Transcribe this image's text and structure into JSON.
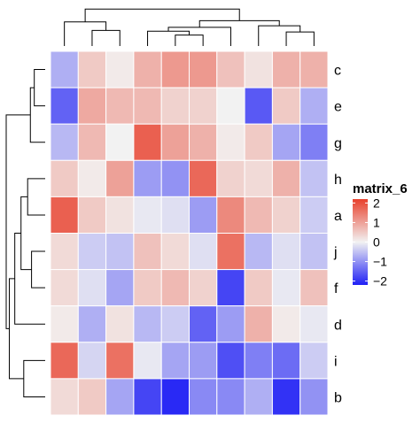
{
  "chart_data": {
    "type": "heatmap",
    "title": "",
    "legend": {
      "title": "matrix_6",
      "ticks": [
        2,
        1,
        0,
        -1,
        -2
      ],
      "tick_labels": [
        "2",
        "1",
        "0",
        "−1",
        "−2"
      ],
      "range": [
        -2.2,
        2.2
      ],
      "colors": {
        "low": "#1f1ff5",
        "mid": "#f2f2f2",
        "high": "#e8402c"
      },
      "position": "right"
    },
    "row_labels": [
      "c",
      "e",
      "g",
      "h",
      "a",
      "j",
      "f",
      "d",
      "i",
      "b"
    ],
    "n_cols": 10,
    "values": [
      [
        -0.7,
        0.5,
        0.1,
        0.8,
        1.1,
        1.1,
        0.6,
        0.2,
        0.8,
        0.8
      ],
      [
        -1.5,
        0.9,
        0.7,
        0.7,
        0.4,
        0.4,
        0.0,
        -1.6,
        0.5,
        -0.7
      ],
      [
        -0.6,
        0.7,
        0.0,
        1.8,
        1.0,
        0.8,
        0.1,
        0.5,
        -0.8,
        -1.2
      ],
      [
        0.5,
        0.1,
        1.0,
        -0.9,
        -1.0,
        1.7,
        0.4,
        0.3,
        0.8,
        -0.5
      ],
      [
        1.8,
        0.5,
        0.2,
        -0.1,
        -0.2,
        -0.9,
        1.3,
        0.7,
        0.4,
        -0.4
      ],
      [
        0.3,
        -0.4,
        -0.5,
        0.6,
        0.3,
        -0.2,
        1.6,
        -0.6,
        -0.2,
        -0.5
      ],
      [
        0.3,
        -0.2,
        -0.8,
        0.5,
        0.7,
        0.4,
        -1.8,
        0.5,
        -0.1,
        0.6
      ],
      [
        0.1,
        -0.7,
        0.2,
        -0.6,
        -0.4,
        -1.5,
        -0.9,
        0.8,
        0.1,
        -0.1
      ],
      [
        1.7,
        -0.3,
        1.6,
        -0.1,
        -0.8,
        -0.9,
        -1.7,
        -1.2,
        -1.4,
        -0.4
      ],
      [
        0.3,
        0.5,
        -0.8,
        -1.8,
        -2.1,
        -1.1,
        -1.1,
        -0.7,
        -2.0,
        -1.0
      ]
    ],
    "row_dendrogram": {
      "leaves": [
        "c",
        "e",
        "g",
        "h",
        "a",
        "j",
        "f",
        "d",
        "i",
        "b"
      ],
      "merges": [
        [
          0,
          1,
          0.28
        ],
        [
          10,
          2,
          0.38
        ],
        [
          3,
          4,
          0.45
        ],
        [
          5,
          6,
          0.35
        ],
        [
          12,
          13,
          0.62
        ],
        [
          14,
          7,
          0.78
        ],
        [
          8,
          9,
          0.55
        ],
        [
          15,
          16,
          0.92
        ],
        [
          11,
          17,
          1.0
        ]
      ]
    },
    "column_dendrogram": {
      "leaves": [
        0,
        1,
        2,
        3,
        4,
        5,
        6,
        7,
        8,
        9
      ],
      "merges": [
        [
          1,
          2,
          0.4
        ],
        [
          0,
          10,
          0.62
        ],
        [
          4,
          5,
          0.28
        ],
        [
          3,
          12,
          0.38
        ],
        [
          13,
          6,
          0.48
        ],
        [
          8,
          9,
          0.36
        ],
        [
          7,
          15,
          0.52
        ],
        [
          14,
          16,
          0.65
        ],
        [
          11,
          17,
          0.95
        ]
      ]
    },
    "grid": false,
    "xlabel": "",
    "ylabel": ""
  }
}
